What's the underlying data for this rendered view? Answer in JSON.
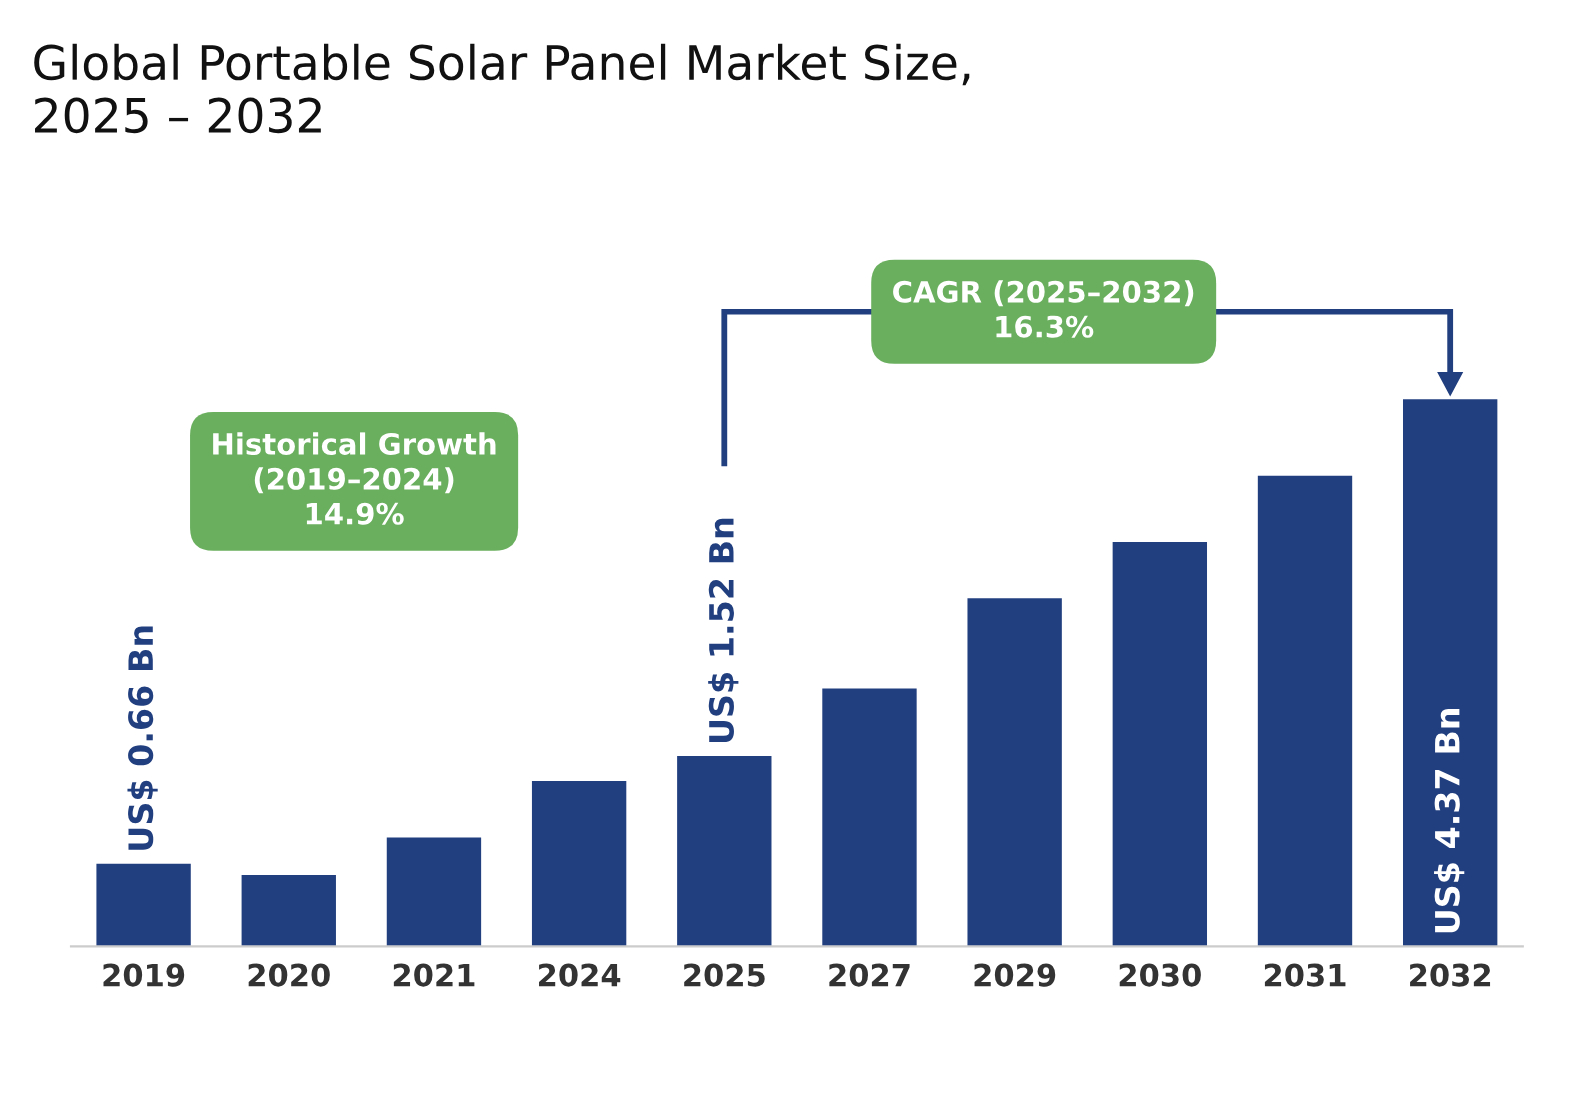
{
  "chart_data": {
    "type": "bar",
    "title": "Global Portable Solar Panel Market Size,\n2025 – 2032",
    "categories": [
      "2019",
      "2020",
      "2021",
      "2024",
      "2025",
      "2027",
      "2029",
      "2030",
      "2031",
      "2032"
    ],
    "values": [
      0.66,
      0.57,
      0.87,
      1.32,
      1.52,
      2.06,
      2.78,
      3.23,
      3.76,
      4.37
    ],
    "value_labels": [
      "US$ 0.66 Bn",
      null,
      null,
      null,
      "US$ 1.52 Bn",
      null,
      null,
      null,
      null,
      "US$ 4.37 Bn"
    ],
    "color": "#213f7f",
    "annotations": [
      "Historical Growth\n(2019–2024)\n14.9%",
      "CAGR (2025–2032)\n16.3%"
    ],
    "grid": false,
    "legend": false
  }
}
